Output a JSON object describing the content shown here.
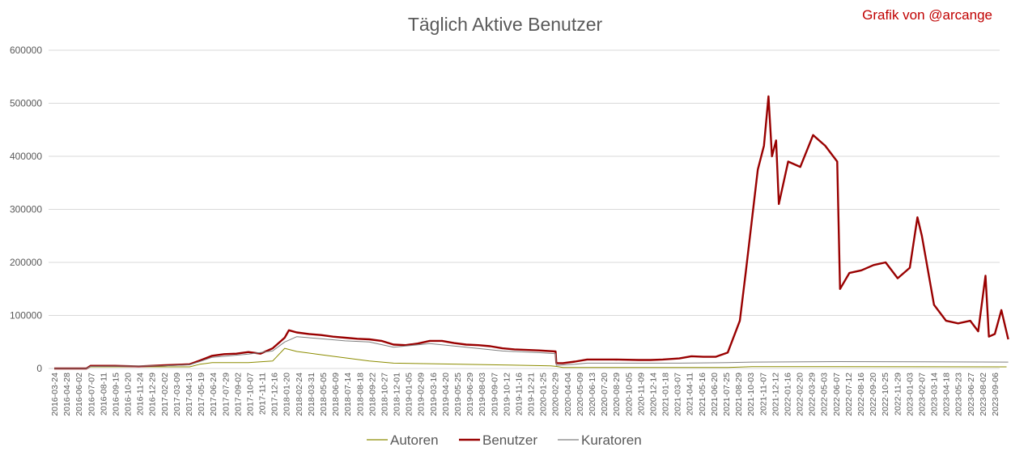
{
  "chart_data": {
    "type": "line",
    "title": "Täglich Aktive Benutzer",
    "credit": "Grafik von @arcange",
    "xlabel": "",
    "ylabel": "",
    "ylim": [
      0,
      600000
    ],
    "yticks": [
      0,
      100000,
      200000,
      300000,
      400000,
      500000,
      600000
    ],
    "grid": true,
    "legend_position": "bottom",
    "colors": {
      "title": "#595959",
      "credit": "#c00000",
      "grid": "#d9d9d9"
    },
    "xticks": [
      "2016-03-24",
      "2016-04-28",
      "2016-06-02",
      "2016-07-07",
      "2016-08-11",
      "2016-09-15",
      "2016-10-20",
      "2016-11-24",
      "2016-12-29",
      "2017-02-02",
      "2017-03-09",
      "2017-04-13",
      "2017-05-19",
      "2017-06-24",
      "2017-07-29",
      "2017-09-02",
      "2017-10-07",
      "2017-11-11",
      "2017-12-16",
      "2018-01-20",
      "2018-02-24",
      "2018-03-31",
      "2018-05-05",
      "2018-06-09",
      "2018-07-14",
      "2018-08-18",
      "2018-09-22",
      "2018-10-27",
      "2018-12-01",
      "2019-01-05",
      "2019-02-09",
      "2019-03-16",
      "2019-04-20",
      "2019-05-25",
      "2019-06-29",
      "2019-08-03",
      "2019-09-07",
      "2019-10-12",
      "2019-11-16",
      "2019-12-21",
      "2020-01-25",
      "2020-02-29",
      "2020-04-04",
      "2020-05-09",
      "2020-06-13",
      "2020-07-20",
      "2020-08-29",
      "2020-10-05",
      "2020-11-09",
      "2020-12-14",
      "2021-01-18",
      "2021-03-07",
      "2021-04-11",
      "2021-05-16",
      "2021-06-20",
      "2021-07-25",
      "2021-08-29",
      "2021-10-03",
      "2021-11-07",
      "2021-12-12",
      "2022-01-16",
      "2022-02-20",
      "2022-03-29",
      "2022-05-03",
      "2022-06-07",
      "2022-07-12",
      "2022-08-16",
      "2022-09-20",
      "2022-10-25",
      "2022-11-29",
      "2023-01-03",
      "2023-02-07",
      "2023-03-14",
      "2023-04-18",
      "2023-05-23",
      "2023-06-27",
      "2023-08-02",
      "2023-09-06"
    ],
    "series": [
      {
        "name": "Autoren",
        "color": "#8c8c00",
        "width": 1,
        "points": [
          [
            "2016-03-24",
            0
          ],
          [
            "2016-06-25",
            0
          ],
          [
            "2016-07-07",
            3000
          ],
          [
            "2017-04-20",
            3000
          ],
          [
            "2017-05-19",
            8000
          ],
          [
            "2017-06-24",
            11000
          ],
          [
            "2017-10-07",
            11000
          ],
          [
            "2017-12-16",
            14000
          ],
          [
            "2018-01-20",
            38000
          ],
          [
            "2018-02-24",
            32000
          ],
          [
            "2018-05-05",
            26000
          ],
          [
            "2018-07-14",
            20000
          ],
          [
            "2018-09-22",
            14000
          ],
          [
            "2018-12-01",
            10000
          ],
          [
            "2019-03-16",
            9000
          ],
          [
            "2019-09-07",
            7000
          ],
          [
            "2020-02-29",
            5000
          ],
          [
            "2020-03-15",
            4000
          ],
          [
            "2020-04-04",
            2000
          ],
          [
            "2021-07-25",
            2000
          ],
          [
            "2021-10-03",
            3500
          ],
          [
            "2023-10-10",
            3000
          ]
        ]
      },
      {
        "name": "Benutzer",
        "color": "#990000",
        "width": 2.4,
        "points": [
          [
            "2016-03-24",
            0
          ],
          [
            "2016-06-25",
            0
          ],
          [
            "2016-07-07",
            5000
          ],
          [
            "2016-09-15",
            5000
          ],
          [
            "2016-11-24",
            4000
          ],
          [
            "2017-02-02",
            6000
          ],
          [
            "2017-04-20",
            8000
          ],
          [
            "2017-05-19",
            15000
          ],
          [
            "2017-06-24",
            24000
          ],
          [
            "2017-07-29",
            27000
          ],
          [
            "2017-09-02",
            28000
          ],
          [
            "2017-10-07",
            31000
          ],
          [
            "2017-11-11",
            28000
          ],
          [
            "2017-12-16",
            38000
          ],
          [
            "2018-01-20",
            58000
          ],
          [
            "2018-02-01",
            72000
          ],
          [
            "2018-02-24",
            68000
          ],
          [
            "2018-03-31",
            65000
          ],
          [
            "2018-05-05",
            63000
          ],
          [
            "2018-06-09",
            60000
          ],
          [
            "2018-07-14",
            58000
          ],
          [
            "2018-08-18",
            56000
          ],
          [
            "2018-09-22",
            55000
          ],
          [
            "2018-10-27",
            52000
          ],
          [
            "2018-12-01",
            45000
          ],
          [
            "2019-01-05",
            44000
          ],
          [
            "2019-02-09",
            47000
          ],
          [
            "2019-03-16",
            52000
          ],
          [
            "2019-04-20",
            52000
          ],
          [
            "2019-05-25",
            48000
          ],
          [
            "2019-06-29",
            45000
          ],
          [
            "2019-08-03",
            44000
          ],
          [
            "2019-09-07",
            42000
          ],
          [
            "2019-10-12",
            38000
          ],
          [
            "2019-11-16",
            36000
          ],
          [
            "2019-12-21",
            35000
          ],
          [
            "2020-01-25",
            34000
          ],
          [
            "2020-03-14",
            32000
          ],
          [
            "2020-03-16",
            10000
          ],
          [
            "2020-04-04",
            10000
          ],
          [
            "2020-05-09",
            13000
          ],
          [
            "2020-06-13",
            17000
          ],
          [
            "2020-08-29",
            17000
          ],
          [
            "2020-11-09",
            16000
          ],
          [
            "2020-12-14",
            16000
          ],
          [
            "2021-01-18",
            17000
          ],
          [
            "2021-03-07",
            19000
          ],
          [
            "2021-04-11",
            23000
          ],
          [
            "2021-05-16",
            22000
          ],
          [
            "2021-06-20",
            22000
          ],
          [
            "2021-07-25",
            30000
          ],
          [
            "2021-08-29",
            90000
          ],
          [
            "2021-09-15",
            180000
          ],
          [
            "2021-10-03",
            280000
          ],
          [
            "2021-10-20",
            375000
          ],
          [
            "2021-11-07",
            420000
          ],
          [
            "2021-11-20",
            513000
          ],
          [
            "2021-11-30",
            400000
          ],
          [
            "2021-12-12",
            430000
          ],
          [
            "2021-12-20",
            310000
          ],
          [
            "2022-01-16",
            390000
          ],
          [
            "2022-02-20",
            380000
          ],
          [
            "2022-03-29",
            440000
          ],
          [
            "2022-05-03",
            420000
          ],
          [
            "2022-06-07",
            390000
          ],
          [
            "2022-06-15",
            150000
          ],
          [
            "2022-07-12",
            180000
          ],
          [
            "2022-08-16",
            185000
          ],
          [
            "2022-09-20",
            195000
          ],
          [
            "2022-10-25",
            200000
          ],
          [
            "2022-11-29",
            170000
          ],
          [
            "2023-01-03",
            190000
          ],
          [
            "2023-01-25",
            285000
          ],
          [
            "2023-02-07",
            250000
          ],
          [
            "2023-03-14",
            120000
          ],
          [
            "2023-04-18",
            90000
          ],
          [
            "2023-05-23",
            85000
          ],
          [
            "2023-06-27",
            90000
          ],
          [
            "2023-07-20",
            70000
          ],
          [
            "2023-08-10",
            175000
          ],
          [
            "2023-08-20",
            60000
          ],
          [
            "2023-09-06",
            65000
          ],
          [
            "2023-09-25",
            110000
          ],
          [
            "2023-10-15",
            55000
          ]
        ]
      },
      {
        "name": "Kuratoren",
        "color": "#808080",
        "width": 1,
        "points": [
          [
            "2016-03-24",
            0
          ],
          [
            "2016-06-25",
            0
          ],
          [
            "2016-07-07",
            4000
          ],
          [
            "2017-02-02",
            5000
          ],
          [
            "2017-04-20",
            7000
          ],
          [
            "2017-05-19",
            13000
          ],
          [
            "2017-06-24",
            21000
          ],
          [
            "2017-10-07",
            27000
          ],
          [
            "2017-12-16",
            33000
          ],
          [
            "2018-01-20",
            50000
          ],
          [
            "2018-02-24",
            60000
          ],
          [
            "2018-05-05",
            56000
          ],
          [
            "2018-07-14",
            52000
          ],
          [
            "2018-09-22",
            50000
          ],
          [
            "2018-12-01",
            40000
          ],
          [
            "2019-03-16",
            47000
          ],
          [
            "2019-06-29",
            40000
          ],
          [
            "2019-10-12",
            33000
          ],
          [
            "2020-01-25",
            30000
          ],
          [
            "2020-03-14",
            28000
          ],
          [
            "2020-03-16",
            6000
          ],
          [
            "2020-05-09",
            8000
          ],
          [
            "2020-06-13",
            10000
          ],
          [
            "2021-03-07",
            10000
          ],
          [
            "2021-07-25",
            11000
          ],
          [
            "2021-10-03",
            12000
          ],
          [
            "2022-06-07",
            13000
          ],
          [
            "2023-10-15",
            12000
          ]
        ]
      }
    ]
  }
}
